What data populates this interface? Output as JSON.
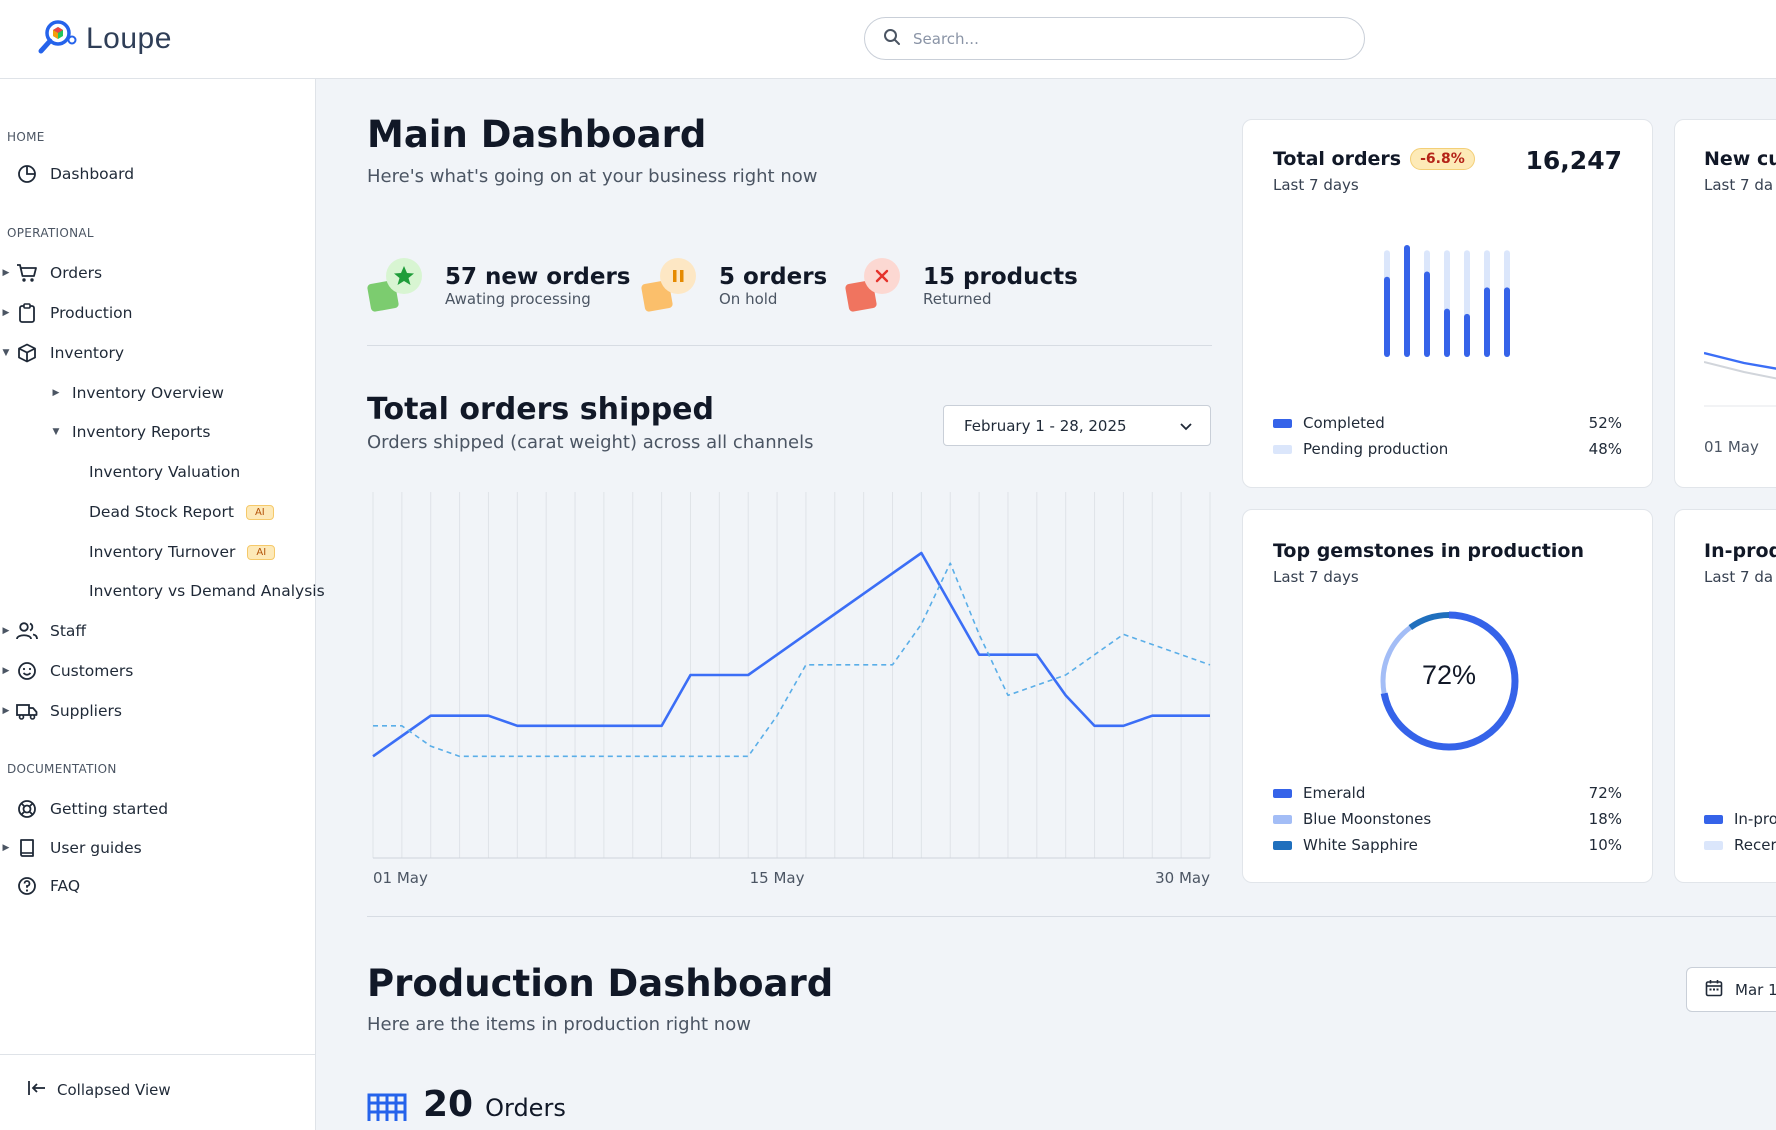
{
  "app": {
    "name": "Loupe"
  },
  "search": {
    "placeholder": "Search..."
  },
  "sidebar": {
    "sections": {
      "home": "HOME",
      "operational": "OPERATIONAL",
      "documentation": "DOCUMENTATION"
    },
    "items": {
      "dashboard": "Dashboard",
      "orders": "Orders",
      "production": "Production",
      "inventory": "Inventory",
      "inventory_overview": "Inventory Overview",
      "inventory_reports": "Inventory Reports",
      "inventory_valuation": "Inventory Valuation",
      "dead_stock": "Dead Stock Report",
      "inventory_turnover": "Inventory Turnover",
      "inventory_vs_demand": "Inventory vs Demand Analysis",
      "staff": "Staff",
      "customers": "Customers",
      "suppliers": "Suppliers",
      "getting_started": "Getting started",
      "user_guides": "User guides",
      "faq": "FAQ"
    },
    "ai_badge": "AI",
    "collapse_label": "Collapsed View"
  },
  "main": {
    "title": "Main Dashboard",
    "subtitle": "Here's what's going on at your business right now",
    "stats": [
      {
        "value": "57 new orders",
        "label": "Awating processing",
        "color": "#16a34a"
      },
      {
        "value": "5 orders",
        "label": "On hold",
        "color": "#f59e0b"
      },
      {
        "value": "15 products",
        "label": "Returned",
        "color": "#ef4444"
      }
    ],
    "shipped": {
      "title": "Total orders shipped",
      "subtitle": "Orders shipped (carat weight) across all channels",
      "date_range": "February 1 - 28, 2025"
    }
  },
  "chart_data": {
    "type": "line",
    "x": [
      1,
      2,
      3,
      4,
      5,
      6,
      7,
      8,
      9,
      10,
      11,
      12,
      13,
      14,
      15,
      16,
      17,
      18,
      19,
      20,
      21,
      22,
      23,
      24,
      25,
      26,
      27,
      28,
      29,
      30
    ],
    "x_tick_labels": [
      "01 May",
      "15 May",
      "30 May"
    ],
    "series": [
      {
        "values": [
          10,
          12,
          14,
          14,
          14,
          13,
          13,
          13,
          13,
          13,
          13,
          18,
          18,
          18,
          20,
          22,
          24,
          26,
          28,
          30,
          25,
          20,
          20,
          20,
          16,
          13,
          13,
          14,
          14,
          14
        ],
        "color": "#3b6ef6",
        "style": "solid"
      },
      {
        "values": [
          13,
          13,
          11,
          10,
          10,
          10,
          10,
          10,
          10,
          10,
          10,
          10,
          10,
          10,
          14,
          19,
          19,
          19,
          19,
          23,
          29,
          22,
          16,
          17,
          18,
          20,
          22,
          21,
          20,
          19
        ],
        "color": "#5aaee8",
        "style": "dashed"
      }
    ],
    "ylim": [
      0,
      36
    ],
    "grid": true
  },
  "cards": {
    "total_orders": {
      "title": "Total orders",
      "badge": "-6.8%",
      "value": "16,247",
      "period": "Last 7 days",
      "legend": [
        {
          "label": "Completed",
          "pct": "52%",
          "color": "#3563e9"
        },
        {
          "label": "Pending production",
          "pct": "48%",
          "color": "#dbe6fb"
        }
      ],
      "bars": [
        {
          "completed": 0.7,
          "total": 0.95
        },
        {
          "completed": 1.0,
          "total": 1.0
        },
        {
          "completed": 0.75,
          "total": 0.95
        },
        {
          "completed": 0.4,
          "total": 0.95
        },
        {
          "completed": 0.35,
          "total": 0.95
        },
        {
          "completed": 0.6,
          "total": 0.95
        },
        {
          "completed": 0.6,
          "total": 0.95
        }
      ]
    },
    "new_customers": {
      "title": "New cu",
      "period": "Last 7 da",
      "axis_label": "01 May"
    },
    "gemstones": {
      "title": "Top gemstones in production",
      "period": "Last 7 days",
      "center": "72%",
      "legend": [
        {
          "label": "Emerald",
          "pct": "72%",
          "color": "#3563e9"
        },
        {
          "label": "Blue Moonstones",
          "pct": "18%",
          "color": "#a3bdf6"
        },
        {
          "label": "White Sapphire",
          "pct": "10%",
          "color": "#1f6fbd"
        }
      ]
    },
    "in_production": {
      "title": "In-prod",
      "period": "Last 7 da",
      "legend": [
        {
          "label": "In-pro",
          "color": "#3563e9"
        },
        {
          "label": "Recer",
          "color": "#dbe6fb"
        }
      ]
    }
  },
  "production": {
    "title": "Production Dashboard",
    "subtitle": "Here are the items in production right now",
    "date_button": "Mar 1",
    "orders_count": "20",
    "orders_label": "Orders"
  }
}
